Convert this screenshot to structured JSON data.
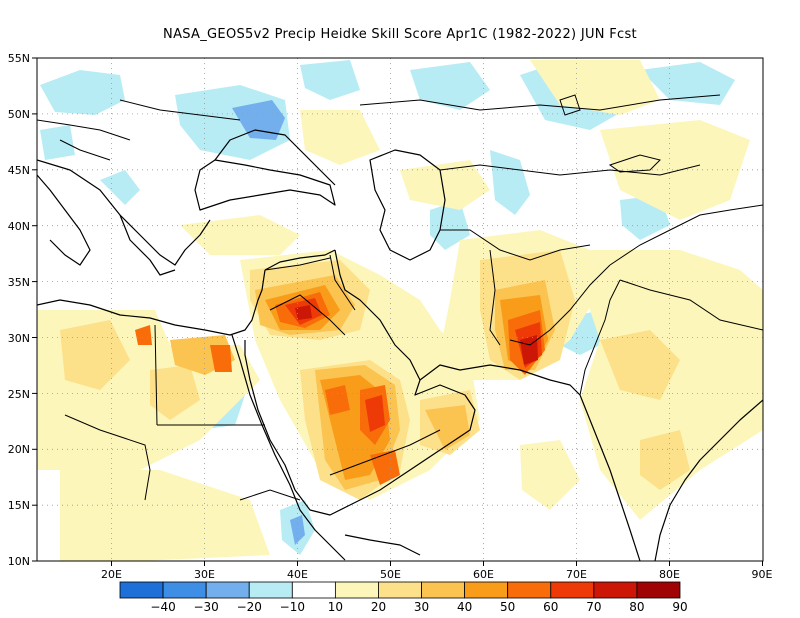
{
  "title": "NASA_GEOS5v2 Precip Heidke Skill Score Apr1C (1982-2022) JUN Fcst",
  "map": {
    "lon_range": [
      12,
      90
    ],
    "lat_range": [
      10,
      55
    ],
    "lon_ticks": [
      "20E",
      "30E",
      "40E",
      "50E",
      "60E",
      "70E",
      "80E",
      "90E"
    ],
    "lat_ticks": [
      "55N",
      "50N",
      "45N",
      "40N",
      "35N",
      "30N",
      "25N",
      "20N",
      "15N",
      "10N"
    ],
    "grid": "dotted",
    "colors": {
      "c_lt_-40": "#1f6fd9",
      "c_-40_-30": "#3f8ee6",
      "c_-30_-20": "#74afed",
      "c_-20_-10": "#b7ecf5",
      "c_10_20": "#fdf6ba",
      "c_20_30": "#fde08a",
      "c_30_40": "#fbc350",
      "c_40_50": "#f99c1a",
      "c_50_60": "#f86d0a",
      "c_60_70": "#ee3a06",
      "c_70_80": "#cc1606",
      "c_gt_90": "#a00303"
    }
  },
  "colorbar": {
    "labels": [
      "-40",
      "-30",
      "-20",
      "-10",
      "10",
      "20",
      "30",
      "40",
      "50",
      "60",
      "70",
      "80",
      "90"
    ],
    "colors": [
      "#1f6fd9",
      "#3f8ee6",
      "#74afed",
      "#b7ecf5",
      "#ffffff",
      "#fdf6ba",
      "#fde08a",
      "#fbc350",
      "#f99c1a",
      "#f86d0a",
      "#ee3a06",
      "#cc1606",
      "#a00303"
    ]
  }
}
